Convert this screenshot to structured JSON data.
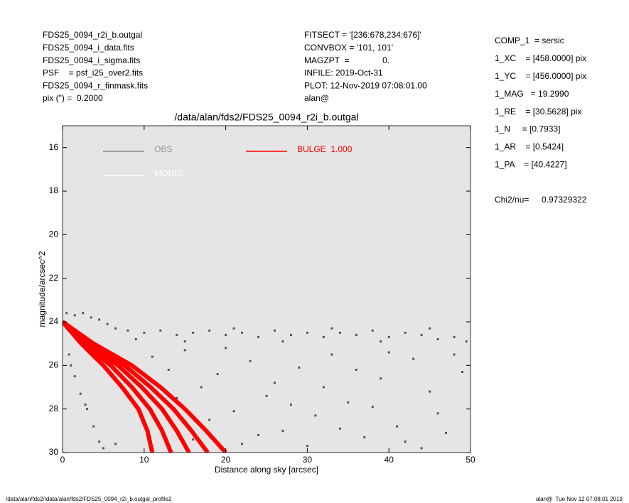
{
  "header": {
    "left": [
      "FDS25_0094_r2i_b.outgal",
      "FDS25_0094_i_data.fits",
      "FDS25_0094_i_sigma.fits",
      "PSF    = psf_i25_over2.fits",
      "FDS25_0094_r_finmask.fits",
      "pix (\") =  0.2000"
    ],
    "middle": [
      "FITSECT = '[236:678,234:676]'",
      "CONVBOX = '101, 101'",
      "MAGZPT  =              0.",
      "INFILE: 2019-Oct-31",
      "PLOT: 12-Nov-2019 07:08:01.00",
      "alan@"
    ],
    "right": [
      "COMP_1  = sersic",
      "1_XC    = [458.0000] pix",
      "1_YC    = [456.0000] pix",
      "1_MAG   = 19.2990",
      "1_RE    = [30.5628] pix",
      "1_N     = [0.7933]",
      "1_AR    = [0.5424]",
      "1_PA    = [40.4227]"
    ],
    "chi2_label": "Chi2/nu=",
    "chi2_value": "0.97329322"
  },
  "footer": {
    "left": "/data/alan/fds2//data/alan/fds2/FDS25_0094_r2i_b.outgal_profile2",
    "right": "alan@  Tue Nov 12 07:08:01 2019"
  },
  "chart_data": {
    "type": "scatter",
    "title": "/data/alan/fds2/FDS25_0094_r2i_b.outgal",
    "xlabel": "Distance along sky [arcsec]",
    "ylabel": "magnitude/arcsec^2",
    "xlim": [
      0,
      50
    ],
    "xticks": [
      0,
      10,
      20,
      30,
      40,
      50
    ],
    "ylim": [
      15,
      30
    ],
    "yticks": [
      16,
      18,
      20,
      22,
      24,
      26,
      28,
      30
    ],
    "y_inverted": true,
    "background": "#e5e5e5",
    "series": [
      {
        "name": "OBS",
        "color": "#555555",
        "legend_color": "#888888",
        "x": [
          0.5,
          1.5,
          2.5,
          3.5,
          4.5,
          5.5,
          6.5,
          8,
          10,
          12,
          14,
          16,
          18,
          20,
          22,
          24,
          26,
          28,
          30,
          32,
          34,
          36,
          38,
          40,
          42,
          44,
          46,
          48,
          49.5,
          9,
          15,
          21,
          27,
          33,
          39,
          45,
          0.8,
          1.5,
          2.2,
          3,
          3.8,
          4.5,
          1,
          2.8,
          5,
          6.5,
          11,
          13,
          15,
          17,
          19,
          21,
          23,
          25,
          27,
          29,
          31,
          33,
          35,
          37,
          39,
          41,
          43,
          45,
          47,
          49,
          22,
          26,
          30,
          34,
          38,
          42,
          46,
          48,
          18,
          14,
          24,
          36,
          44,
          40,
          32,
          20,
          28,
          16
        ],
        "y": [
          23.6,
          23.7,
          23.6,
          23.8,
          23.9,
          24.1,
          24.3,
          24.4,
          24.5,
          24.4,
          24.6,
          24.5,
          24.4,
          24.6,
          24.5,
          24.7,
          24.4,
          24.6,
          24.5,
          24.7,
          24.5,
          24.6,
          24.4,
          24.7,
          24.5,
          24.6,
          24.8,
          24.7,
          24.9,
          24.8,
          24.9,
          24.3,
          24.9,
          24.3,
          24.9,
          24.3,
          25.5,
          26.5,
          27.3,
          28,
          28.8,
          29.5,
          26,
          27.8,
          29.8,
          29.6,
          25.6,
          26.2,
          25.3,
          27,
          26.4,
          28.1,
          25.8,
          27.4,
          29,
          26.1,
          28.3,
          25.5,
          27.7,
          29.3,
          26.6,
          28.8,
          25.7,
          27.2,
          29.1,
          26.3,
          29.6,
          26.8,
          29.7,
          28.9,
          27.9,
          29.5,
          28.2,
          25.5,
          28.5,
          27.5,
          29.2,
          26.2,
          29.8,
          25.4,
          27,
          25.2,
          27.8,
          29.4
        ]
      },
      {
        "name": "BULGE  1.000",
        "color": "#ff0000",
        "y": [
          24,
          25,
          26,
          27,
          28,
          29,
          30
        ],
        "curves": [
          [
            0,
            2.3,
            5,
            7.3,
            9.3,
            10.4,
            11
          ],
          [
            0,
            2.7,
            5.9,
            8.5,
            10.7,
            12.2,
            13.3
          ],
          [
            0,
            3.1,
            6.8,
            9.7,
            12.2,
            14,
            15.5
          ],
          [
            0,
            3.4,
            7.6,
            10.8,
            13.6,
            15.8,
            17.8
          ],
          [
            0,
            3.8,
            8.5,
            12,
            15,
            17.6,
            20
          ]
        ]
      },
      {
        "name": "MODEL",
        "color": "#ffffff"
      }
    ]
  }
}
